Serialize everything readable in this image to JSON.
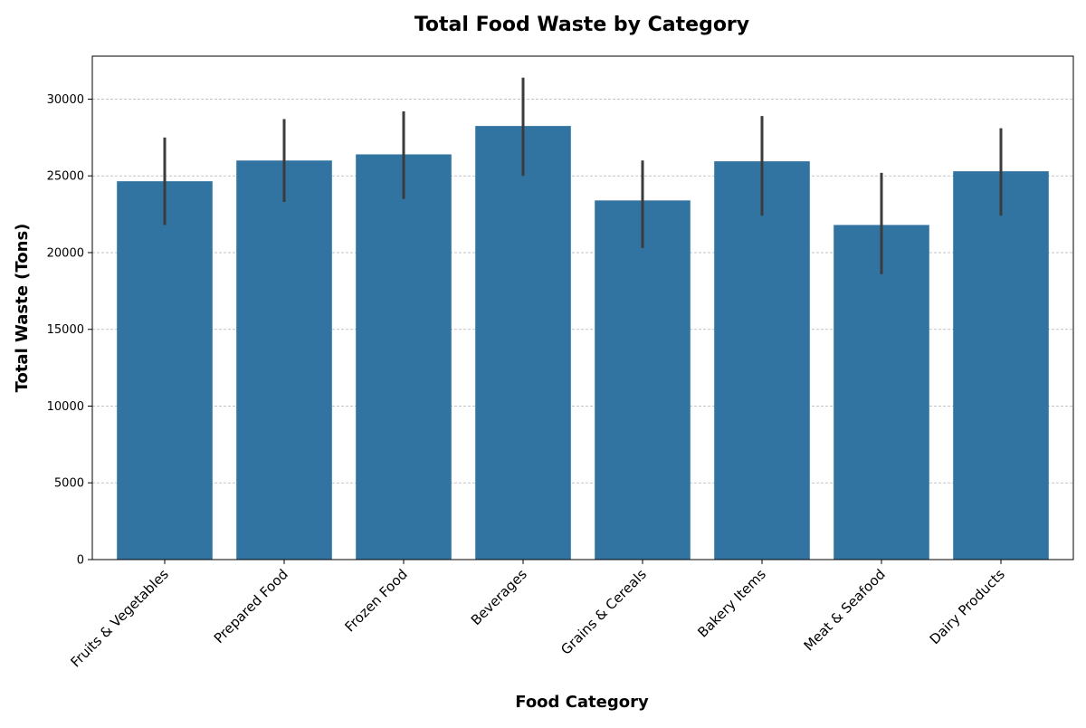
{
  "chart_data": {
    "type": "bar",
    "title": "Total Food Waste by Category",
    "xlabel": "Food Category",
    "ylabel": "Total Waste (Tons)",
    "categories": [
      "Fruits & Vegetables",
      "Prepared Food",
      "Frozen Food",
      "Beverages",
      "Grains & Cereals",
      "Bakery Items",
      "Meat & Seafood",
      "Dairy Products"
    ],
    "values": [
      24650,
      26000,
      26400,
      28250,
      23400,
      25950,
      21800,
      25300
    ],
    "error_low": [
      21800,
      23300,
      23500,
      25000,
      20300,
      22400,
      18600,
      22400
    ],
    "error_high": [
      27500,
      28700,
      29200,
      31400,
      26000,
      28900,
      25200,
      28100
    ],
    "ylim": [
      0,
      32800
    ],
    "yticks": [
      "0",
      "5000",
      "10000",
      "15000",
      "20000",
      "25000",
      "30000"
    ],
    "grid": "horizontal dashed",
    "colors": {
      "bar": "#3274a1",
      "error_bar": "#3b3b3b",
      "grid": "#b0b0b0"
    }
  }
}
